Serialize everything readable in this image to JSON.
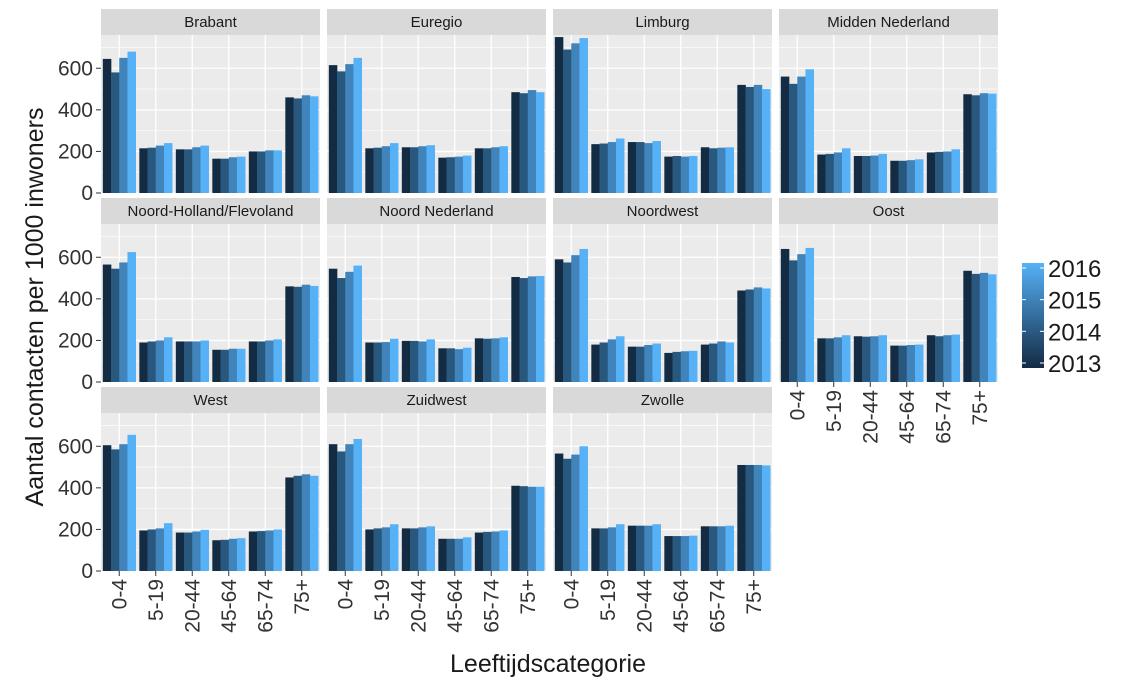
{
  "chart_data": {
    "type": "bar",
    "layout": "facet-grid",
    "xlabel": "Leeftijdscategorie",
    "ylabel": "Aantal contacten per 1000 inwoners",
    "ylim": [
      0,
      760
    ],
    "yticks": [
      0,
      200,
      400,
      600
    ],
    "grid": true,
    "legend_position": "right",
    "categories": [
      "0-4",
      "5-19",
      "20-44",
      "45-64",
      "65-74",
      "75+"
    ],
    "years": [
      "2013",
      "2014",
      "2015",
      "2016"
    ],
    "legend_labels": [
      "2016",
      "2015",
      "2014",
      "2013"
    ],
    "colors": {
      "gradient_low": "#132B43",
      "gradient_high": "#56B1F7",
      "panel_bg": "#EBEBEB",
      "strip_bg": "#D9D9D9",
      "grid": "#FFFFFF"
    },
    "panels": [
      {
        "name": "Brabant",
        "values": [
          [
            645,
            580,
            650,
            680
          ],
          [
            215,
            218,
            228,
            240
          ],
          [
            210,
            210,
            220,
            228
          ],
          [
            165,
            165,
            172,
            175
          ],
          [
            200,
            200,
            205,
            205
          ],
          [
            460,
            455,
            470,
            465
          ]
        ]
      },
      {
        "name": "Euregio",
        "values": [
          [
            615,
            585,
            620,
            650
          ],
          [
            215,
            218,
            225,
            240
          ],
          [
            220,
            220,
            225,
            230
          ],
          [
            170,
            172,
            175,
            180
          ],
          [
            215,
            215,
            220,
            225
          ],
          [
            485,
            480,
            495,
            485
          ]
        ]
      },
      {
        "name": "Limburg",
        "values": [
          [
            750,
            690,
            720,
            745
          ],
          [
            235,
            238,
            245,
            262
          ],
          [
            245,
            245,
            240,
            250
          ],
          [
            175,
            178,
            175,
            178
          ],
          [
            220,
            215,
            218,
            220
          ],
          [
            520,
            510,
            520,
            500
          ]
        ]
      },
      {
        "name": "Midden Nederland",
        "values": [
          [
            560,
            525,
            560,
            595
          ],
          [
            185,
            188,
            195,
            215
          ],
          [
            178,
            178,
            180,
            188
          ],
          [
            155,
            155,
            158,
            162
          ],
          [
            195,
            198,
            200,
            210
          ],
          [
            475,
            470,
            480,
            478
          ]
        ]
      },
      {
        "name": "Noord-Holland/Flevoland",
        "values": [
          [
            565,
            545,
            575,
            625
          ],
          [
            190,
            195,
            200,
            215
          ],
          [
            195,
            195,
            195,
            200
          ],
          [
            155,
            155,
            160,
            160
          ],
          [
            195,
            195,
            200,
            205
          ],
          [
            460,
            458,
            468,
            462
          ]
        ]
      },
      {
        "name": "Noord Nederland",
        "values": [
          [
            545,
            500,
            530,
            560
          ],
          [
            190,
            190,
            192,
            208
          ],
          [
            198,
            198,
            195,
            205
          ],
          [
            162,
            162,
            158,
            165
          ],
          [
            210,
            208,
            210,
            215
          ],
          [
            505,
            500,
            508,
            510
          ]
        ]
      },
      {
        "name": "Noordwest",
        "values": [
          [
            590,
            575,
            610,
            640
          ],
          [
            180,
            190,
            205,
            220
          ],
          [
            170,
            170,
            178,
            185
          ],
          [
            140,
            145,
            148,
            150
          ],
          [
            180,
            185,
            195,
            190
          ],
          [
            440,
            445,
            455,
            450
          ]
        ]
      },
      {
        "name": "Oost",
        "values": [
          [
            640,
            585,
            615,
            645
          ],
          [
            210,
            210,
            215,
            225
          ],
          [
            220,
            218,
            220,
            225
          ],
          [
            175,
            175,
            178,
            180
          ],
          [
            225,
            220,
            225,
            228
          ],
          [
            535,
            520,
            525,
            518
          ]
        ]
      },
      {
        "name": "West",
        "values": [
          [
            605,
            585,
            610,
            655
          ],
          [
            195,
            200,
            205,
            230
          ],
          [
            185,
            185,
            190,
            198
          ],
          [
            148,
            150,
            155,
            158
          ],
          [
            190,
            192,
            195,
            200
          ],
          [
            450,
            458,
            465,
            458
          ]
        ]
      },
      {
        "name": "Zuidwest",
        "values": [
          [
            610,
            575,
            610,
            635
          ],
          [
            200,
            205,
            210,
            225
          ],
          [
            205,
            205,
            210,
            215
          ],
          [
            155,
            155,
            155,
            162
          ],
          [
            185,
            188,
            190,
            195
          ],
          [
            410,
            408,
            405,
            405
          ]
        ]
      },
      {
        "name": "Zwolle",
        "values": [
          [
            565,
            540,
            560,
            600
          ],
          [
            205,
            205,
            210,
            225
          ],
          [
            218,
            218,
            218,
            225
          ],
          [
            168,
            168,
            168,
            170
          ],
          [
            215,
            215,
            215,
            218
          ],
          [
            510,
            510,
            510,
            508
          ]
        ]
      }
    ]
  }
}
